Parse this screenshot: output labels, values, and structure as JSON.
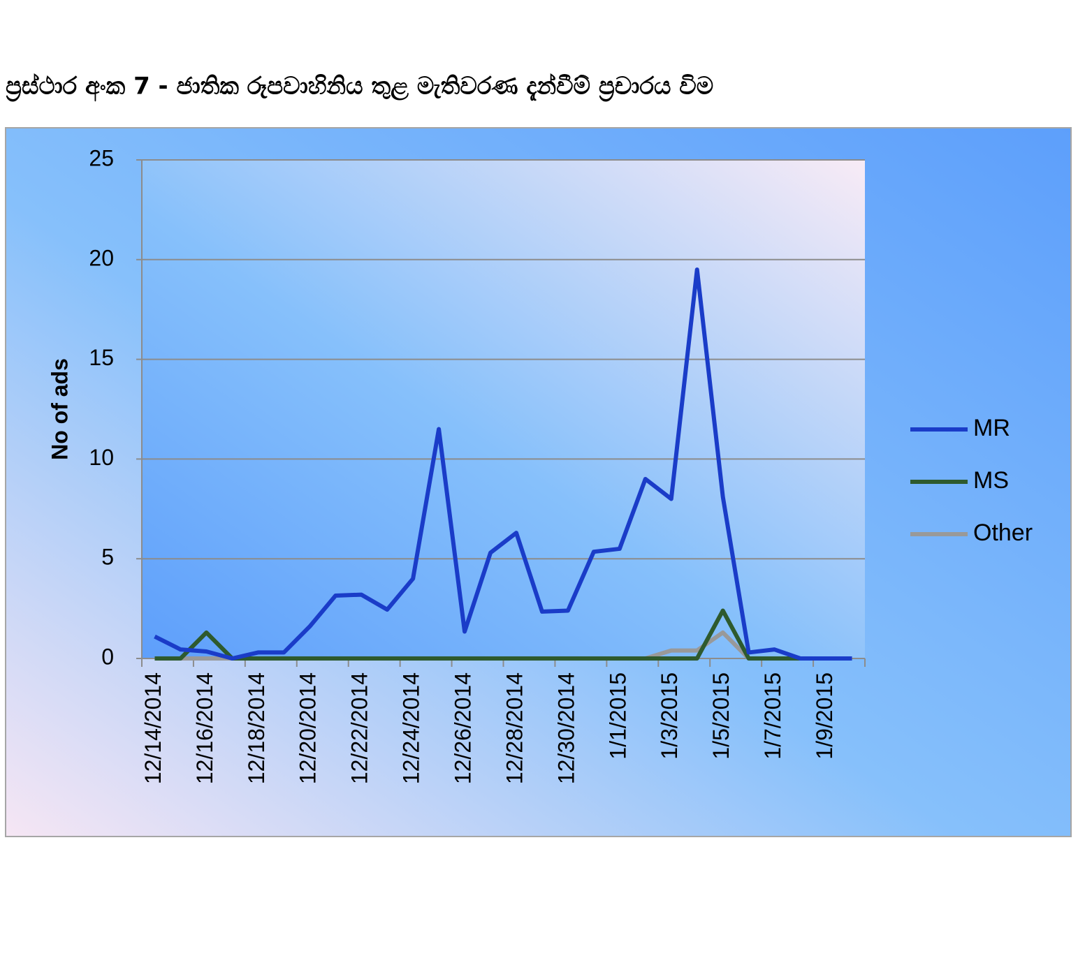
{
  "chart_data": {
    "type": "line",
    "title": "ප්‍රස්ථාර අංක 7 - ජාතික රූපවාහිනිය තුළ මැතිවරණ දැන්වීම් ප්‍රචාරය විම",
    "y_label": "No of ads",
    "categories": [
      "12/14/2014",
      null,
      "12/16/2014",
      null,
      "12/18/2014",
      null,
      "12/20/2014",
      null,
      "12/22/2014",
      null,
      "12/24/2014",
      null,
      "12/26/2014",
      null,
      "12/28/2014",
      null,
      "12/30/2014",
      null,
      "1/1/2015",
      null,
      "1/3/2015",
      null,
      "1/5/2015",
      null,
      "1/7/2015",
      null,
      "1/9/2015",
      null
    ],
    "series": [
      {
        "name": "MR",
        "color": "#1a3cc8",
        "values": [
          1.1,
          0.45,
          0.35,
          0,
          0.3,
          0.3,
          1.6,
          3.15,
          3.2,
          2.45,
          4.0,
          11.5,
          1.35,
          5.3,
          6.3,
          2.35,
          2.4,
          5.35,
          5.5,
          9.0,
          8.0,
          19.5,
          8.1,
          0.3,
          0.45,
          0,
          0,
          0
        ]
      },
      {
        "name": "MS",
        "color": "#2e5a2e",
        "values": [
          0,
          0,
          1.3,
          0,
          0,
          0,
          0,
          0,
          0,
          0,
          0,
          0,
          0,
          0,
          0,
          0,
          0,
          0,
          0,
          0,
          0,
          0,
          2.4,
          0,
          0,
          0,
          0,
          0
        ]
      },
      {
        "name": "Other",
        "color": "#999999",
        "values": [
          0,
          0,
          0,
          0,
          0,
          0,
          0,
          0,
          0,
          0,
          0,
          0,
          0,
          0,
          0,
          0,
          0,
          0,
          0,
          0,
          0.4,
          0.4,
          1.3,
          0,
          0,
          0,
          0,
          0
        ]
      }
    ],
    "ylim": [
      0,
      25
    ],
    "yticks": [
      0,
      5,
      10,
      15,
      20,
      25
    ],
    "grid": true,
    "legend": "right"
  }
}
